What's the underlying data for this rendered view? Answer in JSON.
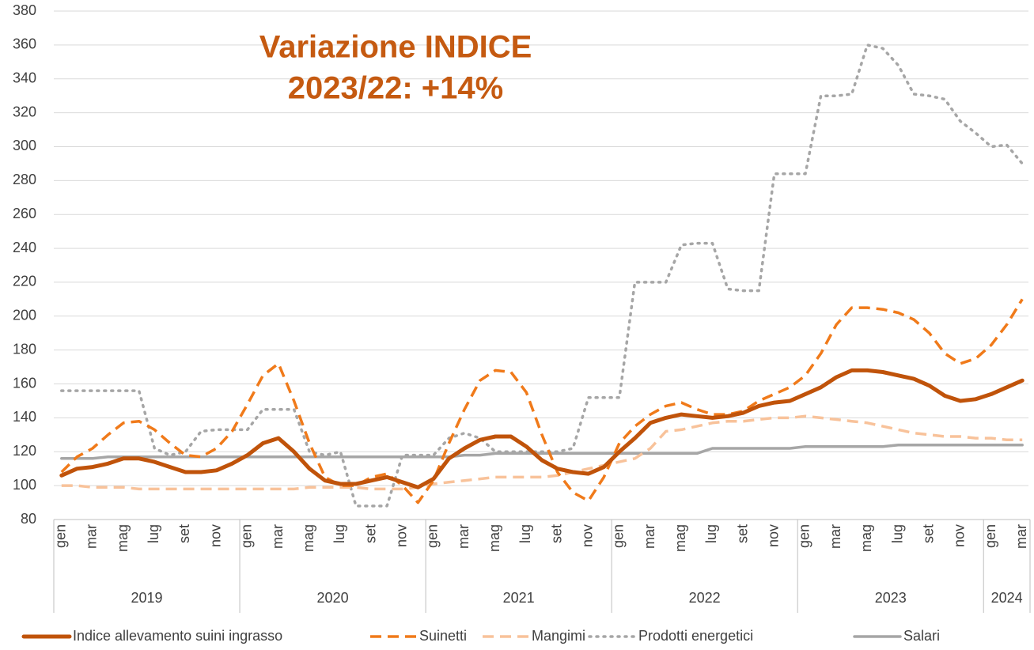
{
  "chart_data": {
    "type": "line",
    "annotation": [
      "Variazione INDICE",
      "2023/22: +14%"
    ],
    "categories": [
      "gen",
      null,
      "mar",
      null,
      "mag",
      null,
      "lug",
      null,
      "set",
      null,
      "nov",
      null,
      "gen",
      null,
      "mar",
      null,
      "mag",
      null,
      "lug",
      null,
      "set",
      null,
      "nov",
      null,
      "gen",
      null,
      "mar",
      null,
      "mag",
      null,
      "lug",
      null,
      "set",
      null,
      "nov",
      null,
      "gen",
      null,
      "mar",
      null,
      "mag",
      null,
      "lug",
      null,
      "set",
      null,
      "nov",
      null,
      "gen",
      null,
      "mar",
      null,
      "mag",
      null,
      "lug",
      null,
      "set",
      null,
      "nov",
      null,
      "gen",
      null,
      "mar"
    ],
    "groups": [
      {
        "label": "2019",
        "count": 12
      },
      {
        "label": "2020",
        "count": 12
      },
      {
        "label": "2021",
        "count": 12
      },
      {
        "label": "2022",
        "count": 12
      },
      {
        "label": "2023",
        "count": 12
      },
      {
        "label": "2024",
        "count": 3
      }
    ],
    "ylim": [
      80,
      380
    ],
    "yticks": [
      80,
      100,
      120,
      140,
      160,
      180,
      200,
      220,
      240,
      260,
      280,
      300,
      320,
      340,
      360,
      380
    ],
    "grid": true,
    "legend": "bottom",
    "series": [
      {
        "name": "Indice allevamento suini ingrasso",
        "color": "#c0530a",
        "style": "solid",
        "width": 5,
        "values": [
          106,
          110,
          111,
          113,
          116,
          116,
          114,
          111,
          108,
          108,
          109,
          113,
          118,
          125,
          128,
          120,
          110,
          103,
          101,
          101,
          103,
          105,
          102,
          99,
          104,
          116,
          122,
          127,
          129,
          129,
          123,
          115,
          110,
          108,
          107,
          111,
          120,
          128,
          137,
          140,
          142,
          141,
          140,
          141,
          143,
          147,
          149,
          150,
          154,
          158,
          164,
          168,
          168,
          167,
          165,
          163,
          159,
          153,
          150,
          151,
          154,
          158,
          162
        ]
      },
      {
        "name": "Suinetti",
        "color": "#f07a1a",
        "style": "dashed",
        "width": 3.5,
        "values": [
          108,
          117,
          122,
          130,
          137,
          138,
          133,
          125,
          118,
          117,
          122,
          132,
          148,
          165,
          172,
          150,
          125,
          105,
          100,
          100,
          105,
          107,
          100,
          90,
          103,
          125,
          145,
          162,
          168,
          167,
          155,
          130,
          108,
          96,
          91,
          105,
          125,
          135,
          142,
          147,
          149,
          145,
          142,
          142,
          144,
          150,
          154,
          158,
          165,
          178,
          195,
          205,
          205,
          204,
          202,
          198,
          190,
          178,
          172,
          175,
          183,
          195,
          210
        ]
      },
      {
        "name": "Mangimi",
        "color": "#f8c29a",
        "style": "dashed",
        "width": 3.5,
        "values": [
          100,
          100,
          99,
          99,
          99,
          98,
          98,
          98,
          98,
          98,
          98,
          98,
          98,
          98,
          98,
          98,
          99,
          99,
          99,
          99,
          98,
          98,
          98,
          99,
          101,
          102,
          103,
          104,
          105,
          105,
          105,
          105,
          106,
          108,
          110,
          112,
          114,
          116,
          122,
          132,
          133,
          135,
          137,
          138,
          138,
          139,
          140,
          140,
          141,
          140,
          139,
          138,
          137,
          135,
          133,
          131,
          130,
          129,
          129,
          128,
          128,
          127,
          127
        ]
      },
      {
        "name": "Prodotti energetici",
        "color": "#a6a6a6",
        "style": "dotted",
        "width": 3.5,
        "values": [
          156,
          156,
          156,
          156,
          156,
          156,
          122,
          118,
          120,
          132,
          133,
          133,
          133,
          145,
          145,
          145,
          120,
          118,
          120,
          88,
          88,
          88,
          118,
          118,
          118,
          128,
          131,
          128,
          120,
          120,
          120,
          120,
          120,
          122,
          152,
          152,
          152,
          220,
          220,
          220,
          242,
          243,
          243,
          216,
          215,
          215,
          284,
          284,
          284,
          330,
          330,
          331,
          360,
          358,
          348,
          331,
          330,
          328,
          315,
          308,
          300,
          301,
          290
        ]
      },
      {
        "name": "Salari",
        "color": "#a6a6a6",
        "style": "solid",
        "width": 3.5,
        "values": [
          116,
          116,
          116,
          117,
          117,
          117,
          117,
          117,
          117,
          117,
          117,
          117,
          117,
          117,
          117,
          117,
          117,
          117,
          117,
          117,
          117,
          117,
          117,
          117,
          117,
          117,
          118,
          118,
          119,
          119,
          119,
          119,
          119,
          119,
          119,
          119,
          119,
          119,
          119,
          119,
          119,
          119,
          122,
          122,
          122,
          122,
          122,
          122,
          123,
          123,
          123,
          123,
          123,
          123,
          124,
          124,
          124,
          124,
          124,
          124,
          124,
          124,
          124
        ]
      }
    ]
  }
}
